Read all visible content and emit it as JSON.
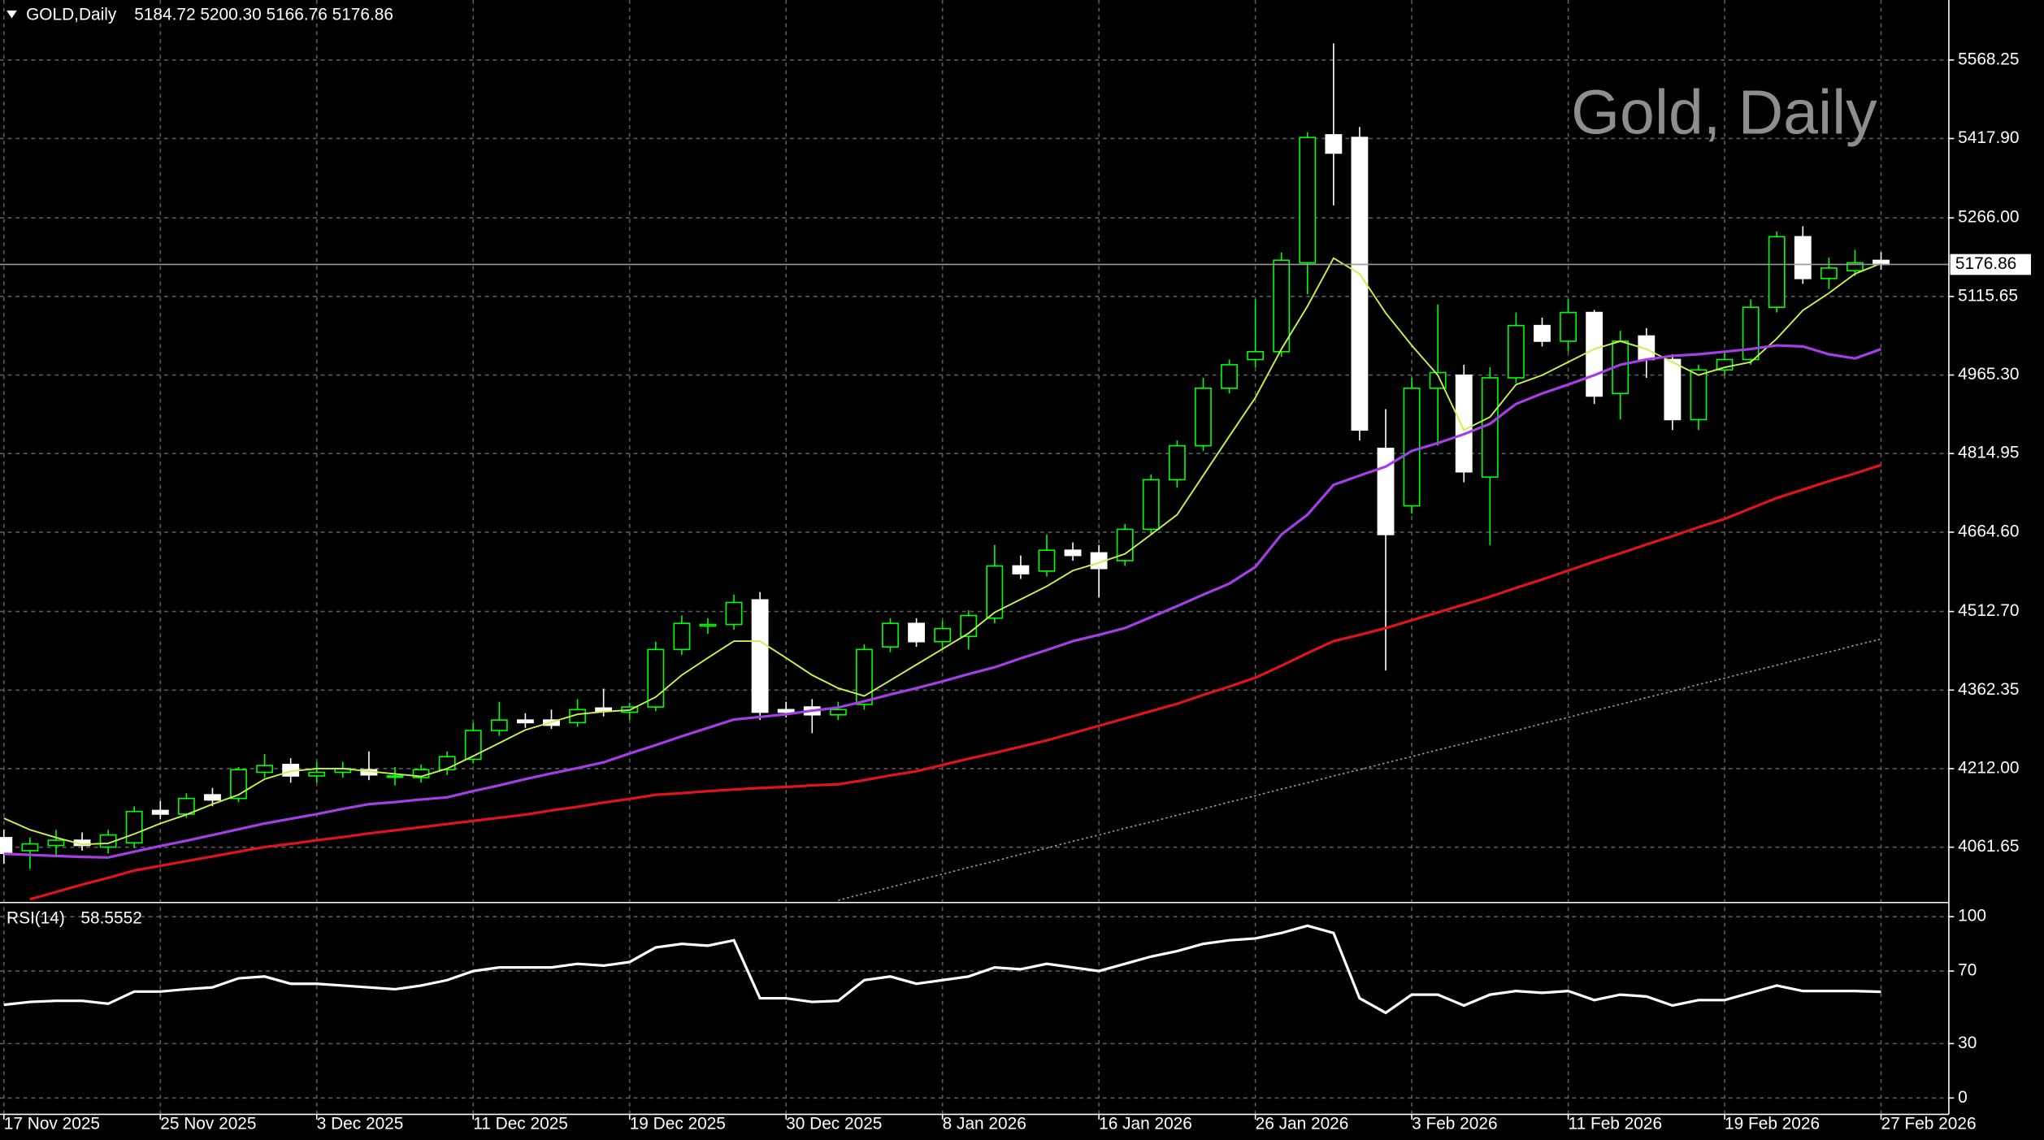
{
  "chart_data": [
    {
      "type": "candlestick",
      "title": "GOLD,Daily",
      "header_values": "5184.72 5200.30 5166.76 5176.86",
      "watermark": "Gold, Daily",
      "categories": [
        "17 Nov 2025",
        null,
        null,
        null,
        null,
        null,
        "25 Nov 2025",
        null,
        null,
        null,
        null,
        null,
        "3 Dec 2025",
        null,
        null,
        null,
        null,
        null,
        "11 Dec 2025",
        null,
        null,
        null,
        null,
        null,
        "19 Dec 2025",
        null,
        null,
        null,
        null,
        null,
        "30 Dec 2025",
        null,
        null,
        null,
        null,
        null,
        "8 Jan 2026",
        null,
        null,
        null,
        null,
        null,
        "16 Jan 2026",
        null,
        null,
        null,
        null,
        null,
        "26 Jan 2026",
        null,
        null,
        null,
        null,
        null,
        "3 Feb 2026",
        null,
        null,
        null,
        null,
        null,
        "11 Feb 2026",
        null,
        null,
        null,
        null,
        null,
        "19 Feb 2026",
        null,
        null,
        null,
        null,
        null,
        "27 Feb 2026"
      ],
      "open": [
        4080,
        4055,
        4065,
        4075,
        4062,
        4070,
        4132,
        4125,
        4162,
        4155,
        4205,
        4220,
        4198,
        4205,
        4210,
        4198,
        4195,
        4210,
        4230,
        4285,
        4305,
        4305,
        4300,
        4328,
        4320,
        4330,
        4440,
        4485,
        4488,
        4535,
        4325,
        4330,
        4315,
        4335,
        4445,
        4490,
        4455,
        4465,
        4500,
        4600,
        4590,
        4630,
        4625,
        4610,
        4670,
        4765,
        4830,
        4940,
        4995,
        5010,
        5180,
        5425,
        5420,
        4825,
        4715,
        4940,
        4965,
        4770,
        4960,
        5060,
        5030,
        5085,
        4930,
        5040,
        4995,
        4880,
        4975,
        4995,
        5095,
        5230,
        5150,
        5165,
        5184.72
      ],
      "high": [
        4095,
        4080,
        4095,
        4090,
        4095,
        4140,
        4150,
        4165,
        4175,
        4215,
        4240,
        4232,
        4225,
        4225,
        4245,
        4215,
        4220,
        4245,
        4300,
        4340,
        4318,
        4325,
        4345,
        4365,
        4338,
        4455,
        4505,
        4500,
        4545,
        4550,
        4340,
        4345,
        4340,
        4450,
        4500,
        4500,
        4495,
        4515,
        4640,
        4620,
        4660,
        4645,
        4640,
        4680,
        4775,
        4840,
        4960,
        4995,
        5110,
        5200,
        5430,
        5600,
        5440,
        4900,
        4960,
        5100,
        4985,
        4980,
        5085,
        5075,
        5110,
        5090,
        5050,
        5055,
        5005,
        4985,
        5010,
        5110,
        5240,
        5250,
        5190,
        5205,
        5200.3
      ],
      "low": [
        4030,
        4020,
        4045,
        4055,
        4050,
        4060,
        4115,
        4118,
        4140,
        4148,
        4195,
        4185,
        4185,
        4195,
        4190,
        4180,
        4185,
        4200,
        4222,
        4275,
        4290,
        4288,
        4292,
        4312,
        4305,
        4322,
        4430,
        4470,
        4478,
        4305,
        4310,
        4280,
        4305,
        4325,
        4435,
        4445,
        4440,
        4440,
        4490,
        4575,
        4580,
        4610,
        4540,
        4600,
        4660,
        4750,
        4820,
        4930,
        4980,
        5000,
        5120,
        5290,
        4840,
        4400,
        4700,
        4830,
        4760,
        4640,
        4950,
        5020,
        5010,
        4910,
        4880,
        4960,
        4860,
        4860,
        4965,
        4985,
        5085,
        5140,
        5130,
        5155,
        5166.76
      ],
      "close": [
        4050,
        4068,
        4075,
        4065,
        4085,
        4130,
        4125,
        4155,
        4152,
        4210,
        4218,
        4198,
        4205,
        4212,
        4200,
        4198,
        4210,
        4235,
        4285,
        4305,
        4300,
        4295,
        4325,
        4322,
        4330,
        4440,
        4490,
        4488,
        4530,
        4320,
        4320,
        4315,
        4325,
        4440,
        4490,
        4455,
        4480,
        4505,
        4600,
        4585,
        4630,
        4620,
        4595,
        4670,
        4765,
        4830,
        4940,
        4985,
        5010,
        5185,
        5420,
        5390,
        4860,
        4660,
        4940,
        4970,
        4780,
        4960,
        5060,
        5030,
        5085,
        4925,
        5030,
        4995,
        4880,
        4975,
        4995,
        5095,
        5230,
        5150,
        5170,
        5180,
        5176.86
      ],
      "up_color": "#00ff00",
      "down_color": "#ffffff",
      "lines": [
        {
          "color": "#c6f24e",
          "style": "solid",
          "values": [
            4117,
            4095,
            4080,
            4067,
            4069,
            4087,
            4107,
            4124,
            4144,
            4162,
            4192,
            4207,
            4212,
            4212,
            4207,
            4202,
            4197,
            4212,
            4236,
            4261,
            4286,
            4301,
            4316,
            4321,
            4324,
            4349,
            4391,
            4424,
            4456,
            4456,
            4424,
            4391,
            4366,
            4351,
            4381,
            4411,
            4441,
            4471,
            4511,
            4536,
            4561,
            4591,
            4606,
            4623,
            4660,
            4698,
            4773,
            4848,
            4922,
            5015,
            5097,
            5189,
            5159,
            5084,
            5022,
            4965,
            4860,
            4885,
            4947,
            4965,
            4990,
            5015,
            5030,
            5015,
            4990,
            4965,
            4980,
            4990,
            5035,
            5089,
            5122,
            5159,
            5179
          ]
        },
        {
          "color": "#a53ee6",
          "style": "solid",
          "values": [
            4049,
            4047,
            4045,
            4043,
            4042,
            4053,
            4064,
            4074,
            4085,
            4096,
            4107,
            4116,
            4125,
            4135,
            4144,
            4148,
            4153,
            4157,
            4169,
            4180,
            4192,
            4203,
            4213,
            4224,
            4241,
            4257,
            4274,
            4290,
            4306,
            4311,
            4316,
            4323,
            4329,
            4341,
            4354,
            4366,
            4379,
            4393,
            4406,
            4423,
            4439,
            4456,
            4468,
            4481,
            4502,
            4523,
            4545,
            4566,
            4598,
            4660,
            4698,
            4755,
            4773,
            4790,
            4820,
            4835,
            4852,
            4872,
            4910,
            4930,
            4947,
            4965,
            4985,
            4995,
            5002,
            5005,
            5010,
            5015,
            5022,
            5020,
            5005,
            4997,
            5015
          ]
        },
        {
          "color": "#e0141a",
          "style": "solid",
          "values": [
            null,
            3962,
            3976,
            3990,
            4003,
            4017,
            4026,
            4035,
            4044,
            4053,
            4062,
            4068,
            4075,
            4081,
            4088,
            4094,
            4100,
            4106,
            4112,
            4118,
            4124,
            4132,
            4139,
            4147,
            4154,
            4162,
            4165,
            4169,
            4172,
            4175,
            4177,
            4180,
            4182,
            4190,
            4199,
            4207,
            4219,
            4231,
            4242,
            4254,
            4266,
            4280,
            4294,
            4308,
            4322,
            4336,
            4353,
            4369,
            4386,
            4409,
            4433,
            4456,
            4468,
            4481,
            4496,
            4511,
            4526,
            4541,
            4558,
            4574,
            4591,
            4608,
            4624,
            4641,
            4657,
            4674,
            4690,
            4710,
            4730,
            4746,
            4762,
            4777,
            4793
          ]
        },
        {
          "color": "#a0a0a0",
          "style": "dotted",
          "values": [
            null,
            null,
            null,
            null,
            null,
            null,
            null,
            null,
            null,
            null,
            null,
            null,
            null,
            null,
            null,
            null,
            null,
            null,
            null,
            null,
            null,
            null,
            null,
            null,
            null,
            null,
            null,
            null,
            null,
            null,
            null,
            null,
            3960,
            3973,
            3985,
            3998,
            4010,
            4023,
            4035,
            4048,
            4060,
            4073,
            4085,
            4098,
            4110,
            4123,
            4135,
            4148,
            4160,
            4173,
            4185,
            4198,
            4210,
            4223,
            4235,
            4248,
            4260,
            4273,
            4285,
            4298,
            4310,
            4323,
            4335,
            4348,
            4360,
            4373,
            4385,
            4398,
            4410,
            4423,
            4435,
            4448,
            4460
          ]
        }
      ],
      "ylim": [
        3957,
        5683
      ],
      "yticks": [
        {
          "value": 4061.65,
          "label": "4061.65"
        },
        {
          "value": 4212,
          "label": "4212.00"
        },
        4362.35,
        {
          "value": 4512.7,
          "label": "4512.70"
        },
        {
          "value": 4664.6,
          "label": "4664.60"
        },
        4814.95,
        {
          "value": 4965.3,
          "label": "4965.30"
        },
        5115.65,
        {
          "value": 5266,
          "label": "5266.00"
        },
        {
          "value": 5417.9,
          "label": "5417.90"
        },
        5568.25
      ],
      "grid": true
    },
    {
      "type": "line",
      "title": "RSI(14)",
      "color": "#ffffff",
      "values": [
        51.4,
        53,
        53.6,
        53.6,
        52,
        58.7,
        58.7,
        60,
        61,
        66,
        67,
        63,
        63,
        62,
        61,
        60,
        62,
        65,
        70,
        72,
        72,
        72,
        74,
        73,
        75,
        83,
        85,
        84,
        87,
        55,
        55,
        53,
        53.6,
        65,
        67,
        63,
        65,
        67,
        72,
        71,
        74,
        72,
        70,
        74,
        78,
        81,
        85,
        87,
        88,
        91,
        95,
        91,
        55,
        47,
        57,
        57,
        51,
        57,
        59,
        58,
        59,
        54,
        57,
        56,
        51,
        54,
        54,
        58,
        62,
        59,
        59,
        59,
        58.5552
      ],
      "ylim": [
        -9,
        106
      ],
      "yticks": [
        0,
        30,
        70,
        100
      ],
      "grid": true
    }
  ]
}
